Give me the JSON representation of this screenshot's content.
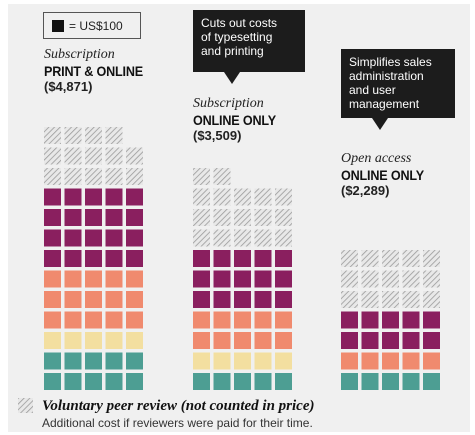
{
  "legend": {
    "unit_label": "= US$100"
  },
  "chart_data": {
    "type": "waffle",
    "unit_value": 100,
    "unit_currency": "US$",
    "colors": {
      "magenta": "#8a1f5f",
      "salmon": "#f08a6e",
      "yellow": "#f3dfa0",
      "teal": "#4d9e93",
      "review": "hatched-gray"
    },
    "series": [
      {
        "subtitle": "Subscription",
        "title": "PRINT & ONLINE",
        "amount_label": "($4,871)",
        "total": 4871,
        "cols": 5,
        "review_squares": 14,
        "row_colors": [
          "teal",
          "teal",
          "yellow",
          "salmon",
          "salmon",
          "salmon",
          "magenta",
          "magenta",
          "magenta",
          "magenta"
        ]
      },
      {
        "subtitle": "Subscription",
        "title": "ONLINE ONLY",
        "amount_label": "($3,509)",
        "total": 3509,
        "cols": 5,
        "review_squares": 17,
        "row_colors": [
          "teal",
          "yellow",
          "salmon",
          "salmon",
          "magenta",
          "magenta",
          "magenta"
        ]
      },
      {
        "subtitle": "Open access",
        "title": "ONLINE ONLY",
        "amount_label": "($2,289)",
        "total": 2289,
        "cols": 5,
        "review_squares": 15,
        "row_colors": [
          "teal",
          "salmon",
          "magenta",
          "magenta"
        ]
      }
    ],
    "callouts": [
      {
        "text_lines": [
          "Cuts out costs",
          "of typesetting",
          "and printing"
        ]
      },
      {
        "text_lines": [
          "Simplifies sales",
          "administration",
          "and user",
          "management"
        ]
      }
    ]
  },
  "footer": {
    "title": "Voluntary peer review (not counted in price)",
    "subtitle": "Additional cost if reviewers were paid for their time."
  }
}
